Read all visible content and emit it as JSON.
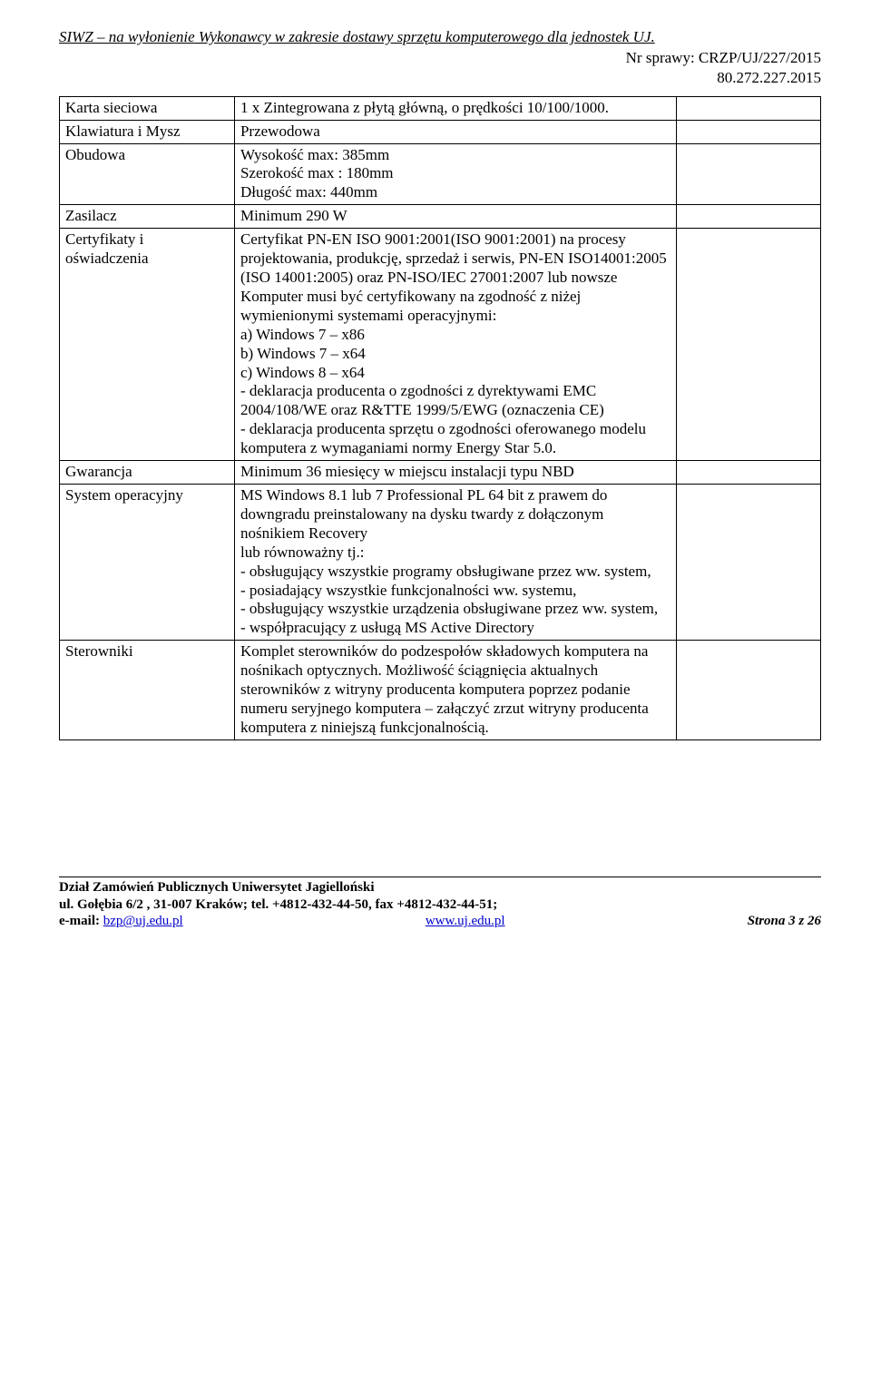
{
  "header": {
    "line1": "SIWZ – na wyłonienie Wykonawcy w zakresie dostawy sprzętu komputerowego dla jednostek UJ.",
    "line2": "Nr sprawy: CRZP/UJ/227/2015",
    "line3": "80.272.227.2015"
  },
  "table": {
    "rows": [
      {
        "c1": "Karta sieciowa",
        "c2": "1 x Zintegrowana z płytą główną, o prędkości 10/100/1000."
      },
      {
        "c1": "Klawiatura i Mysz",
        "c2": "Przewodowa"
      },
      {
        "c1": "Obudowa",
        "c2": "Wysokość max: 385mm\nSzerokość max : 180mm\nDługość max: 440mm"
      },
      {
        "c1": "Zasilacz",
        "c2": "Minimum 290 W"
      },
      {
        "c1": "Certyfikaty i oświadczenia",
        "c2": "Certyfikat PN-EN ISO 9001:2001(ISO 9001:2001) na procesy projektowania, produkcję, sprzedaż i serwis, PN-EN ISO14001:2005 (ISO 14001:2005) oraz PN-ISO/IEC 27001:2007 lub nowsze\nKomputer musi być certyfikowany na zgodność z niżej wymienionymi systemami operacyjnymi:\na) Windows 7 – x86\nb) Windows 7 – x64\nc) Windows 8 – x64\n- deklaracja producenta o zgodności z dyrektywami EMC 2004/108/WE oraz R&TTE 1999/5/EWG (oznaczenia CE)\n- deklaracja producenta sprzętu o zgodności oferowanego modelu komputera z wymaganiami normy Energy Star 5.0."
      },
      {
        "c1": "Gwarancja",
        "c2": "Minimum 36 miesięcy w miejscu instalacji typu NBD"
      },
      {
        "c1": "System operacyjny",
        "c2": "MS Windows 8.1 lub 7 Professional PL 64 bit z prawem do downgradu  preinstalowany na dysku twardy  z dołączonym nośnikiem Recovery\nlub równoważny tj.:\n- obsługujący wszystkie programy obsługiwane przez ww. system,\n- posiadający wszystkie funkcjonalności ww. systemu,\n- obsługujący wszystkie urządzenia obsługiwane przez ww. system,\n- współpracujący z usługą MS Active Directory"
      },
      {
        "c1": "Sterowniki",
        "c2": "Komplet sterowników do podzespołów składowych komputera na nośnikach optycznych. Możliwość ściągnięcia aktualnych sterowników z witryny producenta komputera poprzez podanie numeru seryjnego komputera – załączyć zrzut witryny producenta komputera z niniejszą funkcjonalnością."
      }
    ]
  },
  "footer": {
    "dept": "Dział Zamówień Publicznych Uniwersytet Jagielloński",
    "addr": "ul. Gołębia 6/2 , 31-007 Kraków; tel. +4812-432-44-50, fax +4812-432-44-51;",
    "email_lbl": "e-mail: ",
    "email": "bzp@uj.edu.pl",
    "web": "www.uj.edu.pl",
    "page": "Strona 3 z 26"
  }
}
